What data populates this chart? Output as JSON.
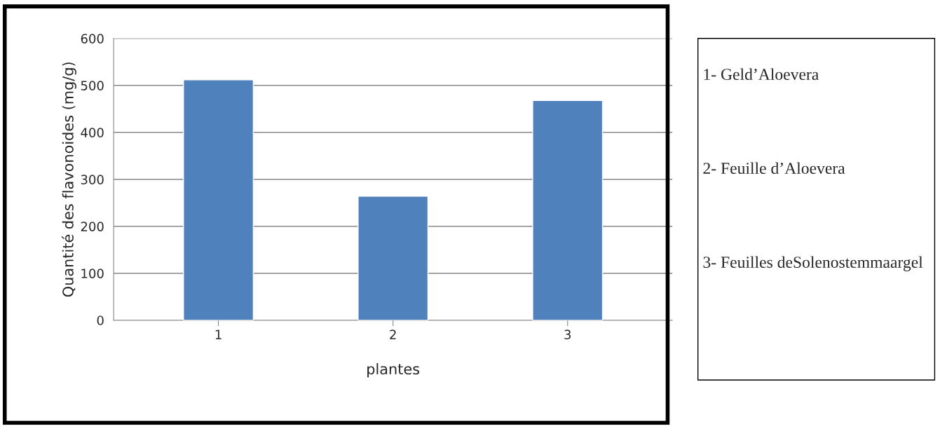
{
  "chart_data": {
    "type": "bar",
    "xlabel": "plantes",
    "ylabel": "Quantité des flavonoides (mg/g)",
    "categories": [
      "1",
      "2",
      "3"
    ],
    "values": [
      512,
      264,
      468
    ],
    "color": "#4f81bd",
    "ylim": [
      0,
      600
    ],
    "yticks": [
      0,
      100,
      200,
      300,
      400,
      500,
      600
    ],
    "grid": "y",
    "annotations": [
      "1- Geld’Aloevera",
      "2- Feuille d’Aloevera",
      "3- Feuilles deSolenostemmaargel"
    ]
  }
}
